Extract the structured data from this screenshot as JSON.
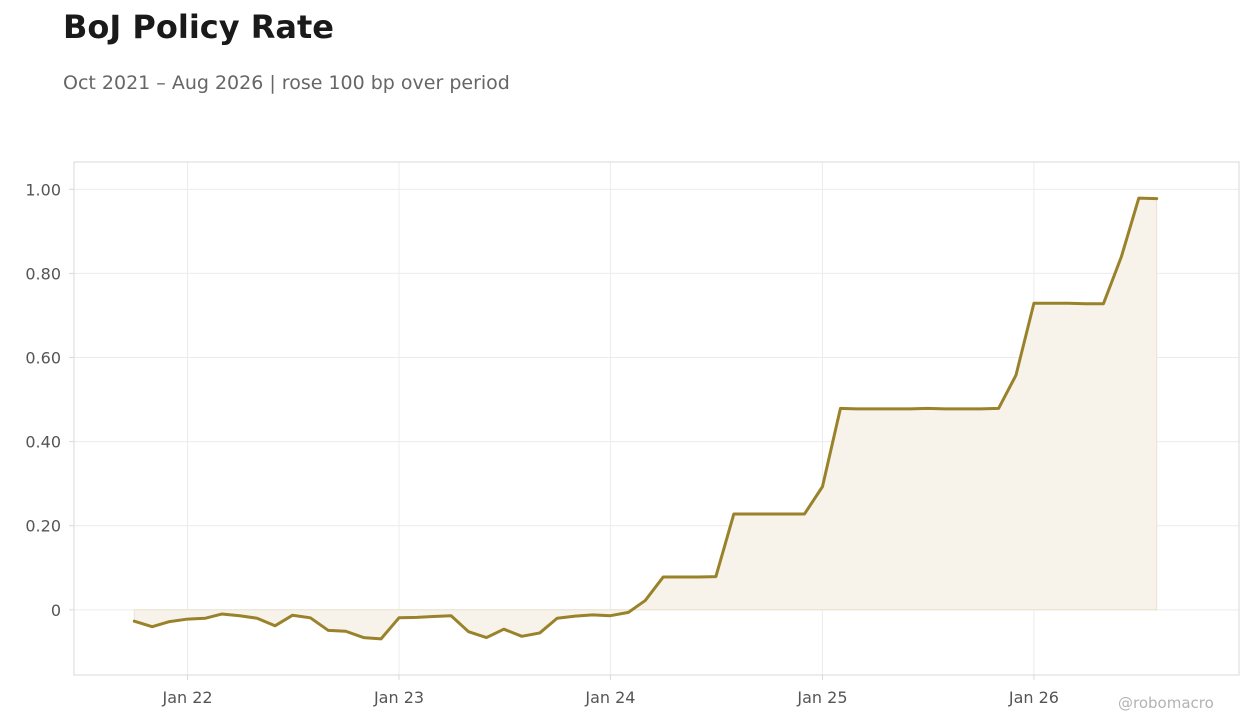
{
  "header": {
    "title": "BoJ Policy Rate",
    "subtitle": "Oct 2021 – Aug 2026 | rose 100 bp over period"
  },
  "watermark": "@robomacro",
  "colors": {
    "line": "#9a822a",
    "fill": "#f7f3eb",
    "grid": "#ececec",
    "frame": "#d9d9d9",
    "tick_text": "#555555"
  },
  "chart_data": {
    "type": "area",
    "title": "BoJ Policy Rate",
    "subtitle": "Oct 2021 – Aug 2026 | rose 100 bp over period",
    "xlabel": "",
    "ylabel": "",
    "grid": true,
    "legend": "none",
    "ylim": [
      -0.155,
      1.065
    ],
    "xlim": [
      "2021-06-19",
      "2026-12-21"
    ],
    "y_ticks": [
      0,
      0.2,
      0.4,
      0.6,
      0.8,
      1.0
    ],
    "y_tick_labels": [
      "0",
      "0.20",
      "0.40",
      "0.60",
      "0.80",
      "1.00"
    ],
    "x_ticks": [
      "2022-01-01",
      "2023-01-01",
      "2024-01-01",
      "2025-01-01",
      "2026-01-01"
    ],
    "x_tick_labels": [
      "Jan 22",
      "Jan 23",
      "Jan 24",
      "Jan 25",
      "Jan 26"
    ],
    "series": [
      {
        "x": [
          "2021-10-01",
          "2021-11-01",
          "2021-12-01",
          "2022-01-01",
          "2022-02-01",
          "2022-03-01",
          "2022-04-01",
          "2022-05-01",
          "2022-06-01",
          "2022-07-01",
          "2022-08-01",
          "2022-09-01",
          "2022-10-01",
          "2022-11-01",
          "2022-12-01",
          "2023-01-01",
          "2023-02-01",
          "2023-03-01",
          "2023-04-01",
          "2023-05-01",
          "2023-06-01",
          "2023-07-01",
          "2023-08-01",
          "2023-09-01",
          "2023-10-01",
          "2023-11-01",
          "2023-12-01",
          "2024-01-01",
          "2024-02-01",
          "2024-03-01",
          "2024-04-01",
          "2024-05-01",
          "2024-06-01",
          "2024-07-01",
          "2024-08-01",
          "2024-09-01",
          "2024-10-01",
          "2024-11-01",
          "2024-12-01",
          "2025-01-01",
          "2025-02-01",
          "2025-03-01",
          "2025-04-01",
          "2025-05-01",
          "2025-06-01",
          "2025-07-01",
          "2025-08-01",
          "2025-09-01",
          "2025-10-01",
          "2025-11-01",
          "2025-12-01",
          "2026-01-01",
          "2026-02-01",
          "2026-03-01",
          "2026-04-01",
          "2026-05-01",
          "2026-06-01",
          "2026-07-01",
          "2026-08-01"
        ],
        "values": [
          -0.027,
          -0.04,
          -0.028,
          -0.022,
          -0.02,
          -0.01,
          -0.014,
          -0.02,
          -0.038,
          -0.013,
          -0.019,
          -0.049,
          -0.051,
          -0.066,
          -0.069,
          -0.019,
          -0.018,
          -0.016,
          -0.014,
          -0.052,
          -0.066,
          -0.046,
          -0.063,
          -0.055,
          -0.02,
          -0.015,
          -0.012,
          -0.014,
          -0.006,
          0.022,
          0.078,
          0.078,
          0.078,
          0.079,
          0.228,
          0.228,
          0.228,
          0.228,
          0.228,
          0.293,
          0.479,
          0.478,
          0.478,
          0.478,
          0.478,
          0.479,
          0.478,
          0.478,
          0.478,
          0.479,
          0.558,
          0.729,
          0.729,
          0.729,
          0.728,
          0.728,
          0.84,
          0.979,
          0.978
        ]
      }
    ]
  }
}
